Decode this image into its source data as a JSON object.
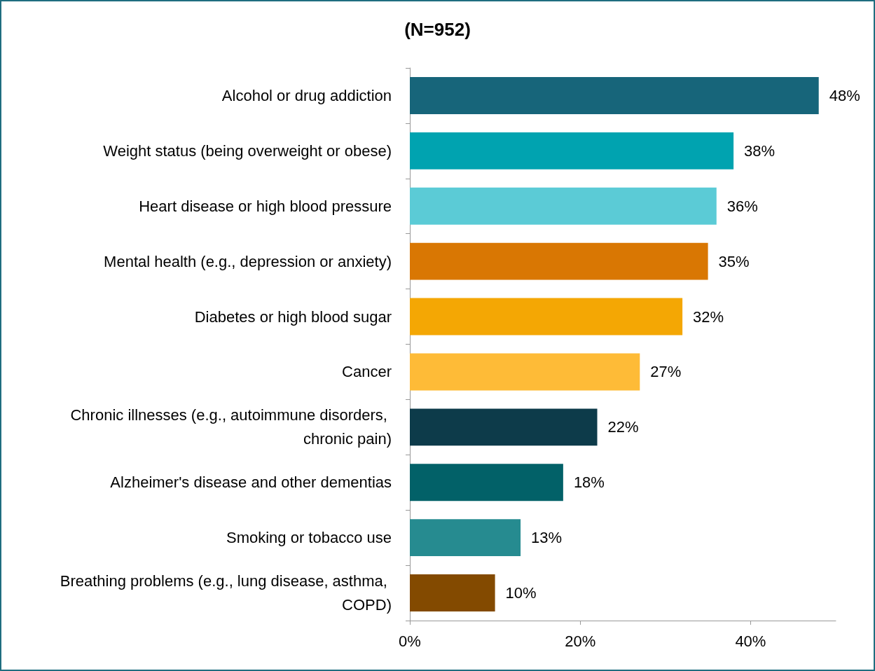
{
  "chart_data": {
    "type": "bar",
    "orientation": "horizontal",
    "title": "(N=952)",
    "categories": [
      "Alcohol or drug addiction",
      "Weight status (being overweight or obese)",
      "Heart disease or high blood pressure",
      "Mental health (e.g., depression or anxiety)",
      "Diabetes or high blood sugar",
      "Cancer",
      "Chronic illnesses (e.g., autoimmune disorders, chronic pain)",
      "Alzheimer's disease and other dementias",
      "Smoking or tobacco use",
      "Breathing problems (e.g., lung disease, asthma, COPD)"
    ],
    "values": [
      48,
      38,
      36,
      35,
      32,
      27,
      22,
      18,
      13,
      10
    ],
    "value_labels": [
      "48%",
      "38%",
      "36%",
      "35%",
      "32%",
      "27%",
      "22%",
      "18%",
      "13%",
      "10%"
    ],
    "colors": [
      "#17657a",
      "#00a3b0",
      "#5bcbd6",
      "#d97703",
      "#f4a704",
      "#febb37",
      "#0d3b4a",
      "#026168",
      "#268b90",
      "#834a00"
    ],
    "xlim": [
      0,
      50
    ],
    "xticks": [
      {
        "value": 0,
        "label": "0%"
      },
      {
        "value": 20,
        "label": "20%"
      },
      {
        "value": 40,
        "label": "40%"
      }
    ]
  }
}
